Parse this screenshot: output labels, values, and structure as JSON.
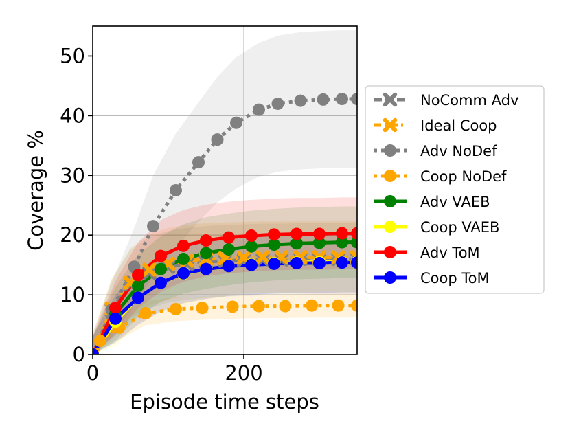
{
  "chart_data": {
    "type": "line",
    "xlabel": "Episode time steps",
    "ylabel": "Coverage %",
    "xlim": [
      0,
      350
    ],
    "ylim": [
      0,
      55
    ],
    "xticks": [
      0,
      200
    ],
    "yticks": [
      0,
      10,
      20,
      30,
      40,
      50
    ],
    "grid": true,
    "legend_position": "right",
    "series": [
      {
        "name": "NoComm Adv",
        "color": "#808080",
        "linestyle": "dashed",
        "marker": "x",
        "x": [
          0,
          25,
          50,
          75,
          100,
          125,
          150,
          175,
          200,
          225,
          250,
          275,
          300,
          325,
          350
        ],
        "y": [
          0,
          7.5,
          11.8,
          13.7,
          14.7,
          15.2,
          15.5,
          15.7,
          15.8,
          15.9,
          15.9,
          16.0,
          16.0,
          16.0,
          16.0
        ],
        "band": [
          3.5,
          5.0,
          5.8,
          6.0,
          6.0,
          6.0,
          6.0,
          6.0,
          6.0,
          6.0,
          6.0,
          6.0,
          6.0,
          6.0,
          6.0
        ]
      },
      {
        "name": "Ideal Coop",
        "color": "#ffa500",
        "linestyle": "dashdot",
        "marker": "x",
        "x": [
          0,
          25,
          50,
          75,
          100,
          125,
          150,
          175,
          200,
          225,
          250,
          275,
          300,
          325,
          350
        ],
        "y": [
          0,
          7.7,
          12.0,
          14.2,
          15.2,
          15.7,
          16.0,
          16.1,
          16.2,
          16.3,
          16.3,
          16.3,
          16.3,
          16.3,
          16.3
        ],
        "band": [
          3.5,
          5.0,
          5.8,
          6.0,
          6.0,
          6.0,
          6.0,
          6.0,
          6.0,
          6.0,
          6.0,
          6.0,
          6.0,
          6.0,
          6.0
        ]
      },
      {
        "name": "Adv NoDef",
        "color": "#808080",
        "linestyle": "dotted",
        "marker": "o",
        "x": [
          0,
          25,
          55,
          80,
          110,
          140,
          165,
          190,
          220,
          245,
          275,
          305,
          330,
          350
        ],
        "y": [
          0,
          7.5,
          14.7,
          21.5,
          27.5,
          32.2,
          36.0,
          38.8,
          41.0,
          42.0,
          42.5,
          42.7,
          42.8,
          42.8
        ],
        "band": [
          3.0,
          4.5,
          6.5,
          8.5,
          9.5,
          10.0,
          10.5,
          11.0,
          11.2,
          11.4,
          11.5,
          11.5,
          11.5,
          11.5
        ]
      },
      {
        "name": "Coop NoDef",
        "color": "#ffa500",
        "linestyle": "dotted",
        "marker": "o",
        "x": [
          0,
          10,
          35,
          70,
          110,
          145,
          185,
          220,
          255,
          290,
          325,
          350
        ],
        "y": [
          0,
          2.3,
          4.5,
          6.9,
          7.6,
          7.8,
          8.0,
          8.1,
          8.1,
          8.2,
          8.2,
          8.2
        ],
        "band": [
          0.6,
          1.5,
          2.0,
          2.0,
          2.0,
          2.0,
          2.0,
          2.0,
          2.0,
          2.0,
          2.0,
          2.0
        ]
      },
      {
        "name": "Adv VAEB",
        "color": "#008000",
        "linestyle": "solid",
        "marker": "o",
        "x": [
          0,
          30,
          60,
          90,
          120,
          150,
          180,
          210,
          240,
          270,
          300,
          330,
          350
        ],
        "y": [
          0,
          6.8,
          11.5,
          14.3,
          16.0,
          17.0,
          17.6,
          18.1,
          18.4,
          18.6,
          18.7,
          18.8,
          18.8
        ],
        "band": [
          3.0,
          4.5,
          5.2,
          5.5,
          5.8,
          6.0,
          6.0,
          6.0,
          6.0,
          6.0,
          6.0,
          6.0,
          6.0
        ]
      },
      {
        "name": "Coop VAEB",
        "color": "#ffff00",
        "linestyle": "solid",
        "marker": "o",
        "x": [
          0,
          30,
          60,
          90,
          120,
          150,
          180,
          210,
          240,
          270,
          300,
          330,
          350
        ],
        "y": [
          0,
          5.5,
          9.5,
          12.0,
          13.5,
          14.3,
          14.8,
          15.1,
          15.3,
          15.4,
          15.5,
          15.5,
          15.5
        ],
        "band": [
          3.0,
          4.0,
          4.5,
          4.8,
          5.0,
          5.0,
          5.0,
          5.0,
          5.0,
          5.0,
          5.0,
          5.0,
          5.0
        ]
      },
      {
        "name": "Adv ToM",
        "color": "#ff0000",
        "linestyle": "solid",
        "marker": "o",
        "x": [
          0,
          30,
          60,
          90,
          120,
          150,
          180,
          210,
          240,
          270,
          300,
          330,
          350
        ],
        "y": [
          0,
          7.8,
          13.3,
          16.5,
          18.2,
          19.1,
          19.6,
          19.9,
          20.1,
          20.2,
          20.2,
          20.3,
          20.3
        ],
        "band": [
          3.0,
          4.5,
          5.5,
          6.0,
          6.0,
          6.0,
          6.0,
          6.0,
          6.0,
          6.0,
          6.0,
          6.0,
          6.0
        ]
      },
      {
        "name": "Coop ToM",
        "color": "#0000ff",
        "linestyle": "solid",
        "marker": "o",
        "x": [
          0,
          30,
          60,
          90,
          120,
          150,
          180,
          210,
          240,
          270,
          300,
          330,
          350
        ],
        "y": [
          0,
          6.0,
          9.5,
          12.0,
          13.6,
          14.3,
          14.8,
          15.0,
          15.2,
          15.3,
          15.3,
          15.4,
          15.4
        ],
        "band": [
          3.0,
          4.0,
          4.5,
          4.8,
          5.0,
          5.0,
          5.0,
          5.0,
          5.0,
          5.0,
          5.0,
          5.0,
          5.0
        ]
      }
    ]
  }
}
